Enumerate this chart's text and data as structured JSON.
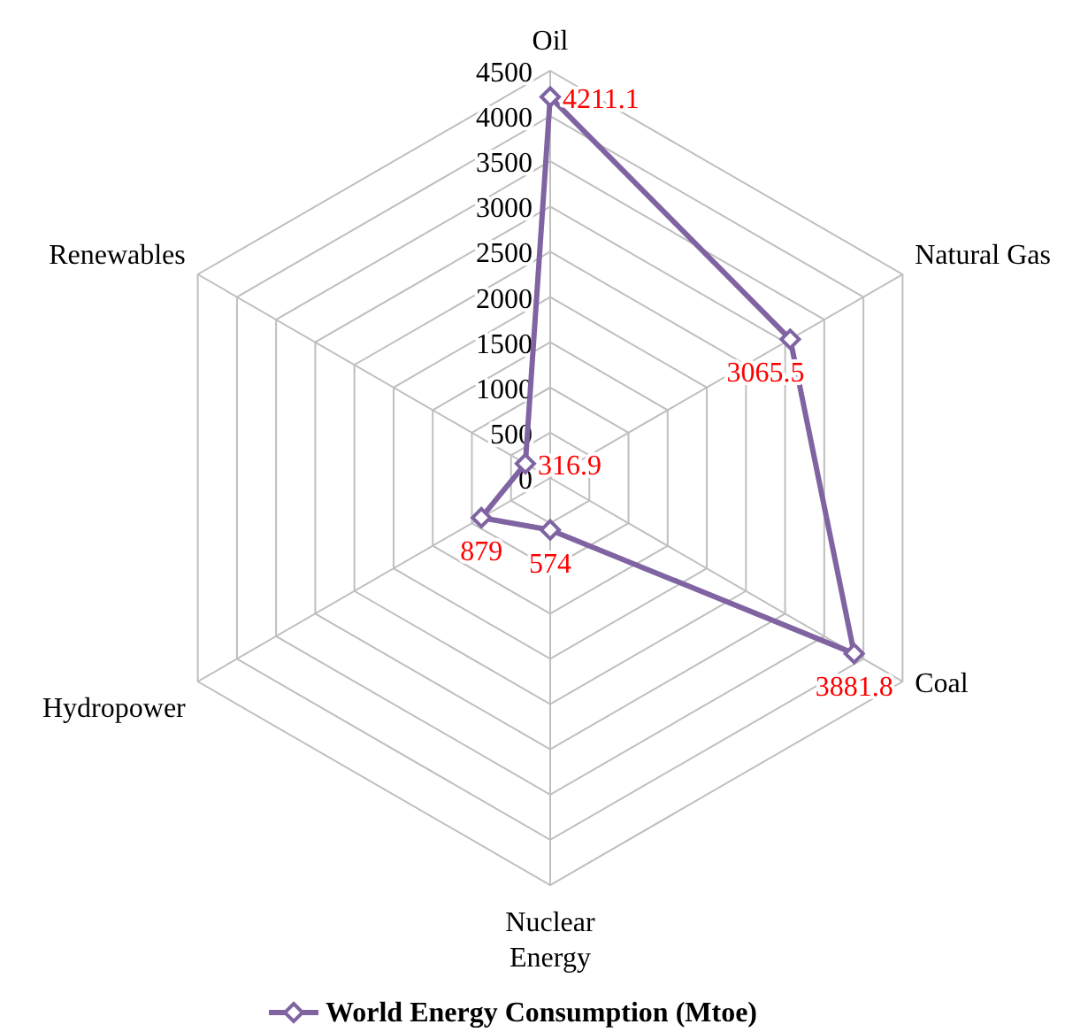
{
  "chart_data": {
    "type": "radar",
    "categories": [
      "Oil",
      "Natural Gas",
      "Coal",
      "Nuclear\nEnergy",
      "Hydropower",
      "Renewables"
    ],
    "series": [
      {
        "name": "World Energy Consumption (Mtoe)",
        "color": "#8064a2",
        "values": [
          4211.1,
          3065.5,
          3881.8,
          574,
          879,
          316.9
        ]
      }
    ],
    "ylim": [
      0,
      4500
    ],
    "yticks": [
      0,
      500,
      1000,
      1500,
      2000,
      2500,
      3000,
      3500,
      4000,
      4500
    ],
    "grid": true,
    "legend": "bottom",
    "marker": "diamond",
    "data_labels": true
  }
}
